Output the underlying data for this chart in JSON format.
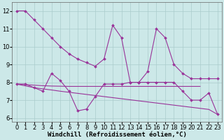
{
  "background_color": "#cce8e8",
  "grid_color": "#aacccc",
  "line_color": "#993399",
  "xlabel": "Windchill (Refroidissement éolien,°C)",
  "ylim": [
    5.8,
    12.5
  ],
  "xlim": [
    -0.5,
    23.5
  ],
  "yticks": [
    6,
    7,
    8,
    9,
    10,
    11,
    12
  ],
  "xticks": [
    0,
    1,
    2,
    3,
    4,
    5,
    6,
    7,
    8,
    9,
    10,
    11,
    12,
    13,
    14,
    15,
    16,
    17,
    18,
    19,
    20,
    21,
    22,
    23
  ],
  "fontsize_label": 6.5,
  "fontsize_tick": 6.0,
  "line1_x": [
    0,
    1,
    2,
    3,
    4,
    5,
    6,
    7,
    8,
    9,
    10,
    11,
    12,
    13,
    14,
    15,
    16,
    17,
    18,
    19,
    20,
    21,
    22,
    23
  ],
  "line1_y": [
    12,
    12,
    11.5,
    11.0,
    10.5,
    10.0,
    9.6,
    9.3,
    9.1,
    8.9,
    9.3,
    11.2,
    10.5,
    8.0,
    8.0,
    8.6,
    11.0,
    10.5,
    9.0,
    8.5,
    8.2,
    8.2,
    8.2,
    8.2
  ],
  "line2_x": [
    0,
    1,
    2,
    3,
    4,
    5,
    6,
    7,
    8,
    9,
    10,
    11,
    12,
    13,
    14,
    15,
    16,
    17,
    18,
    19,
    20,
    21,
    22,
    23
  ],
  "line2_y": [
    7.9,
    7.9,
    7.7,
    7.5,
    8.5,
    8.1,
    7.5,
    6.4,
    6.5,
    7.2,
    7.9,
    7.9,
    7.9,
    8.0,
    8.0,
    8.0,
    8.0,
    8.0,
    8.0,
    7.5,
    7.0,
    7.0,
    7.4,
    6.2
  ],
  "line3_x": [
    0,
    1,
    2,
    3,
    4,
    5,
    6,
    7,
    8,
    9,
    10,
    11,
    12,
    13,
    14,
    15,
    16,
    17,
    18,
    19,
    20,
    21
  ],
  "line3_y": [
    7.9,
    7.87,
    7.84,
    7.81,
    7.79,
    7.78,
    7.77,
    7.77,
    7.77,
    7.77,
    7.77,
    7.77,
    7.77,
    7.77,
    7.77,
    7.77,
    7.77,
    7.77,
    7.77,
    7.77,
    7.77,
    7.77
  ],
  "line4_x": [
    0,
    1,
    2,
    3,
    4,
    5,
    6,
    7,
    8,
    9,
    10,
    11,
    12,
    13,
    14,
    15,
    16,
    17,
    18,
    19,
    20,
    21,
    22,
    23
  ],
  "line4_y": [
    7.9,
    7.8,
    7.7,
    7.63,
    7.57,
    7.5,
    7.44,
    7.38,
    7.32,
    7.26,
    7.2,
    7.14,
    7.08,
    7.02,
    6.96,
    6.9,
    6.84,
    6.78,
    6.72,
    6.66,
    6.6,
    6.54,
    6.48,
    6.2
  ]
}
